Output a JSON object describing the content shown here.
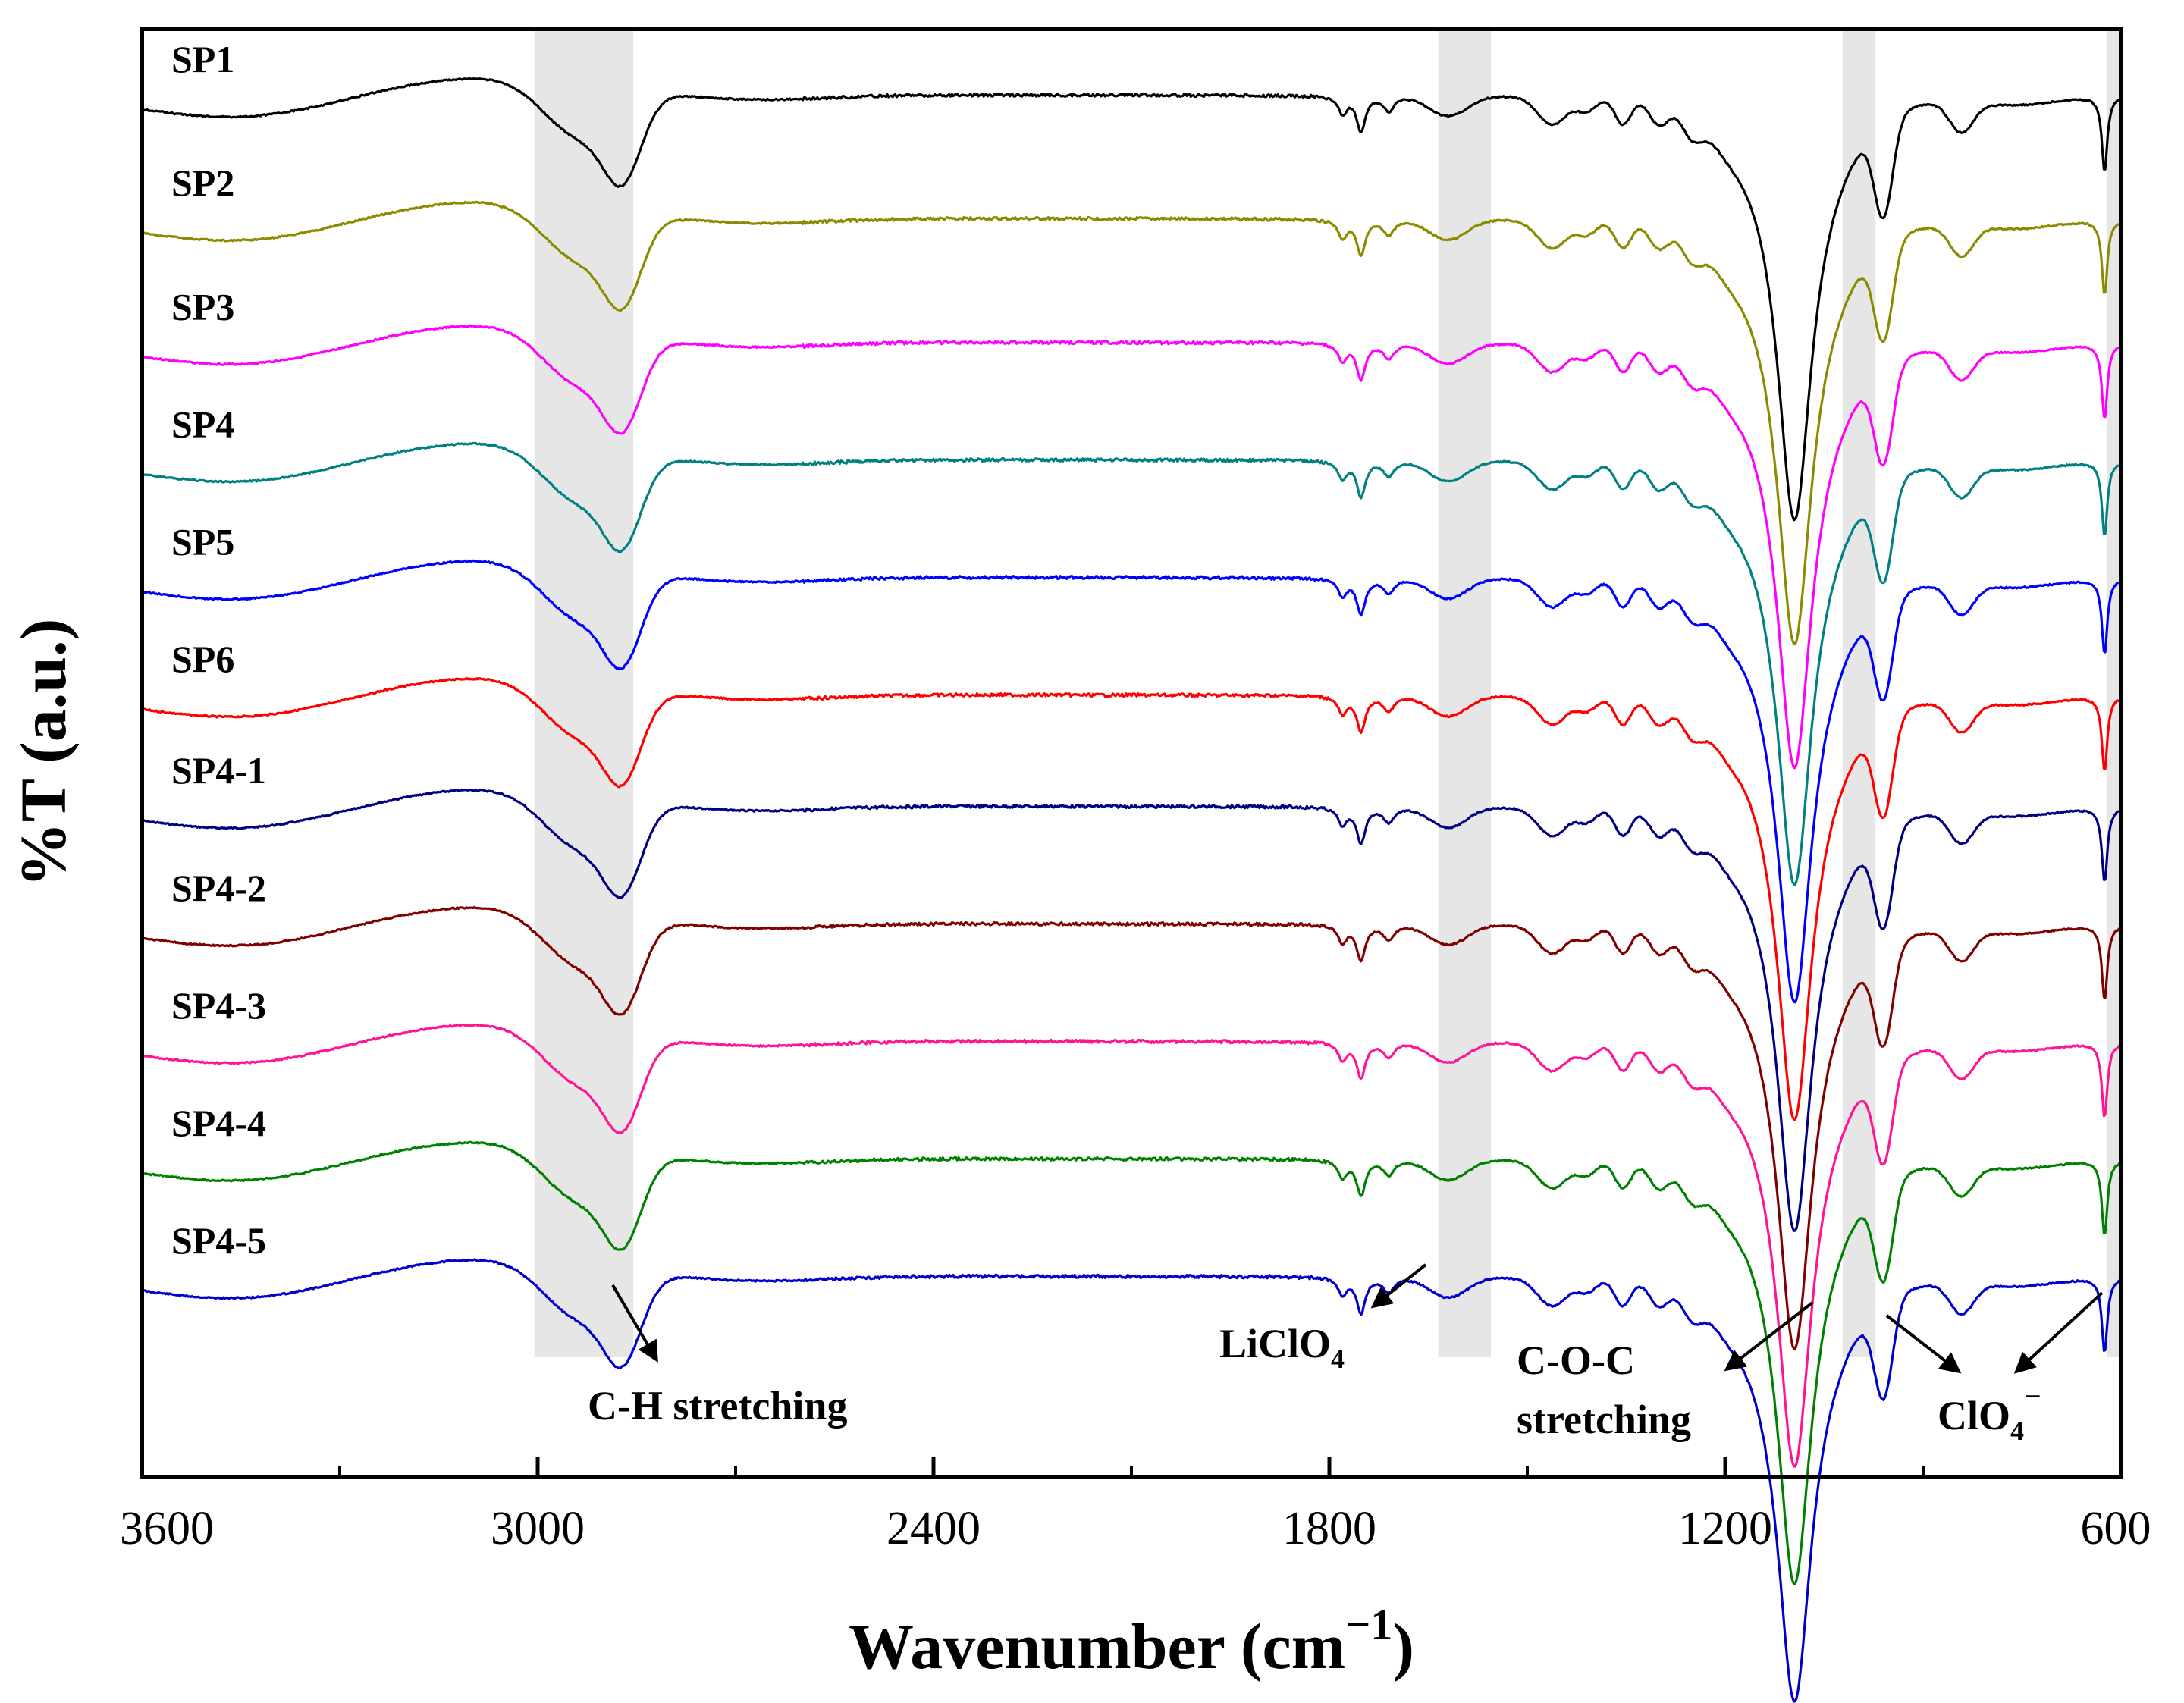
{
  "chart_data": {
    "type": "line",
    "title": "",
    "xlabel": "Wavenumber (cm",
    "xlabel_sup": "−1",
    "xlabel_close": ")",
    "ylabel": "%T (a.u.)",
    "xlim": [
      3600,
      600
    ],
    "x_reversed": true,
    "xticks": [
      "3600",
      "3000",
      "2400",
      "1800",
      "1200",
      "600"
    ],
    "xtick_values": [
      3600,
      3000,
      2400,
      1800,
      1200,
      600
    ],
    "minor_tick_values": [
      3300,
      2700,
      2100,
      1500,
      900
    ],
    "grid": false,
    "shaded_bands_cm-1": [
      [
        2855,
        3005
      ],
      [
        1555,
        1635
      ],
      [
        972,
        1022
      ],
      [
        598,
        622
      ]
    ],
    "series": [
      {
        "name": "SP1",
        "color": "#000000",
        "baseline": 1.0,
        "seed": 1
      },
      {
        "name": "SP2",
        "color": "#8b8b00",
        "baseline": 0.9,
        "seed": 2
      },
      {
        "name": "SP3",
        "color": "#ff00ff",
        "baseline": 0.8,
        "seed": 3
      },
      {
        "name": "SP4",
        "color": "#008080",
        "baseline": 0.705,
        "seed": 4
      },
      {
        "name": "SP5",
        "color": "#0000ff",
        "baseline": 0.61,
        "seed": 5
      },
      {
        "name": "SP6",
        "color": "#ff0000",
        "baseline": 0.515,
        "seed": 6
      },
      {
        "name": "SP4-1",
        "color": "#000080",
        "baseline": 0.425,
        "seed": 7
      },
      {
        "name": "SP4-2",
        "color": "#800000",
        "baseline": 0.33,
        "seed": 8
      },
      {
        "name": "SP4-3",
        "color": "#ff1493",
        "baseline": 0.235,
        "seed": 9
      },
      {
        "name": "SP4-4",
        "color": "#008000",
        "baseline": 0.14,
        "seed": 10
      },
      {
        "name": "SP4-5",
        "color": "#0000cd",
        "baseline": 0.045,
        "seed": 11
      }
    ],
    "annotations": [
      {
        "text": "C-H stretching",
        "sub": "",
        "line2": ""
      },
      {
        "text": "LiClO",
        "sub": "4",
        "line2": ""
      },
      {
        "text": "C-O-C",
        "sub": "",
        "line2": "stretching"
      },
      {
        "text": "ClO",
        "sub": "4",
        "sup": "−",
        "line2": ""
      }
    ]
  }
}
